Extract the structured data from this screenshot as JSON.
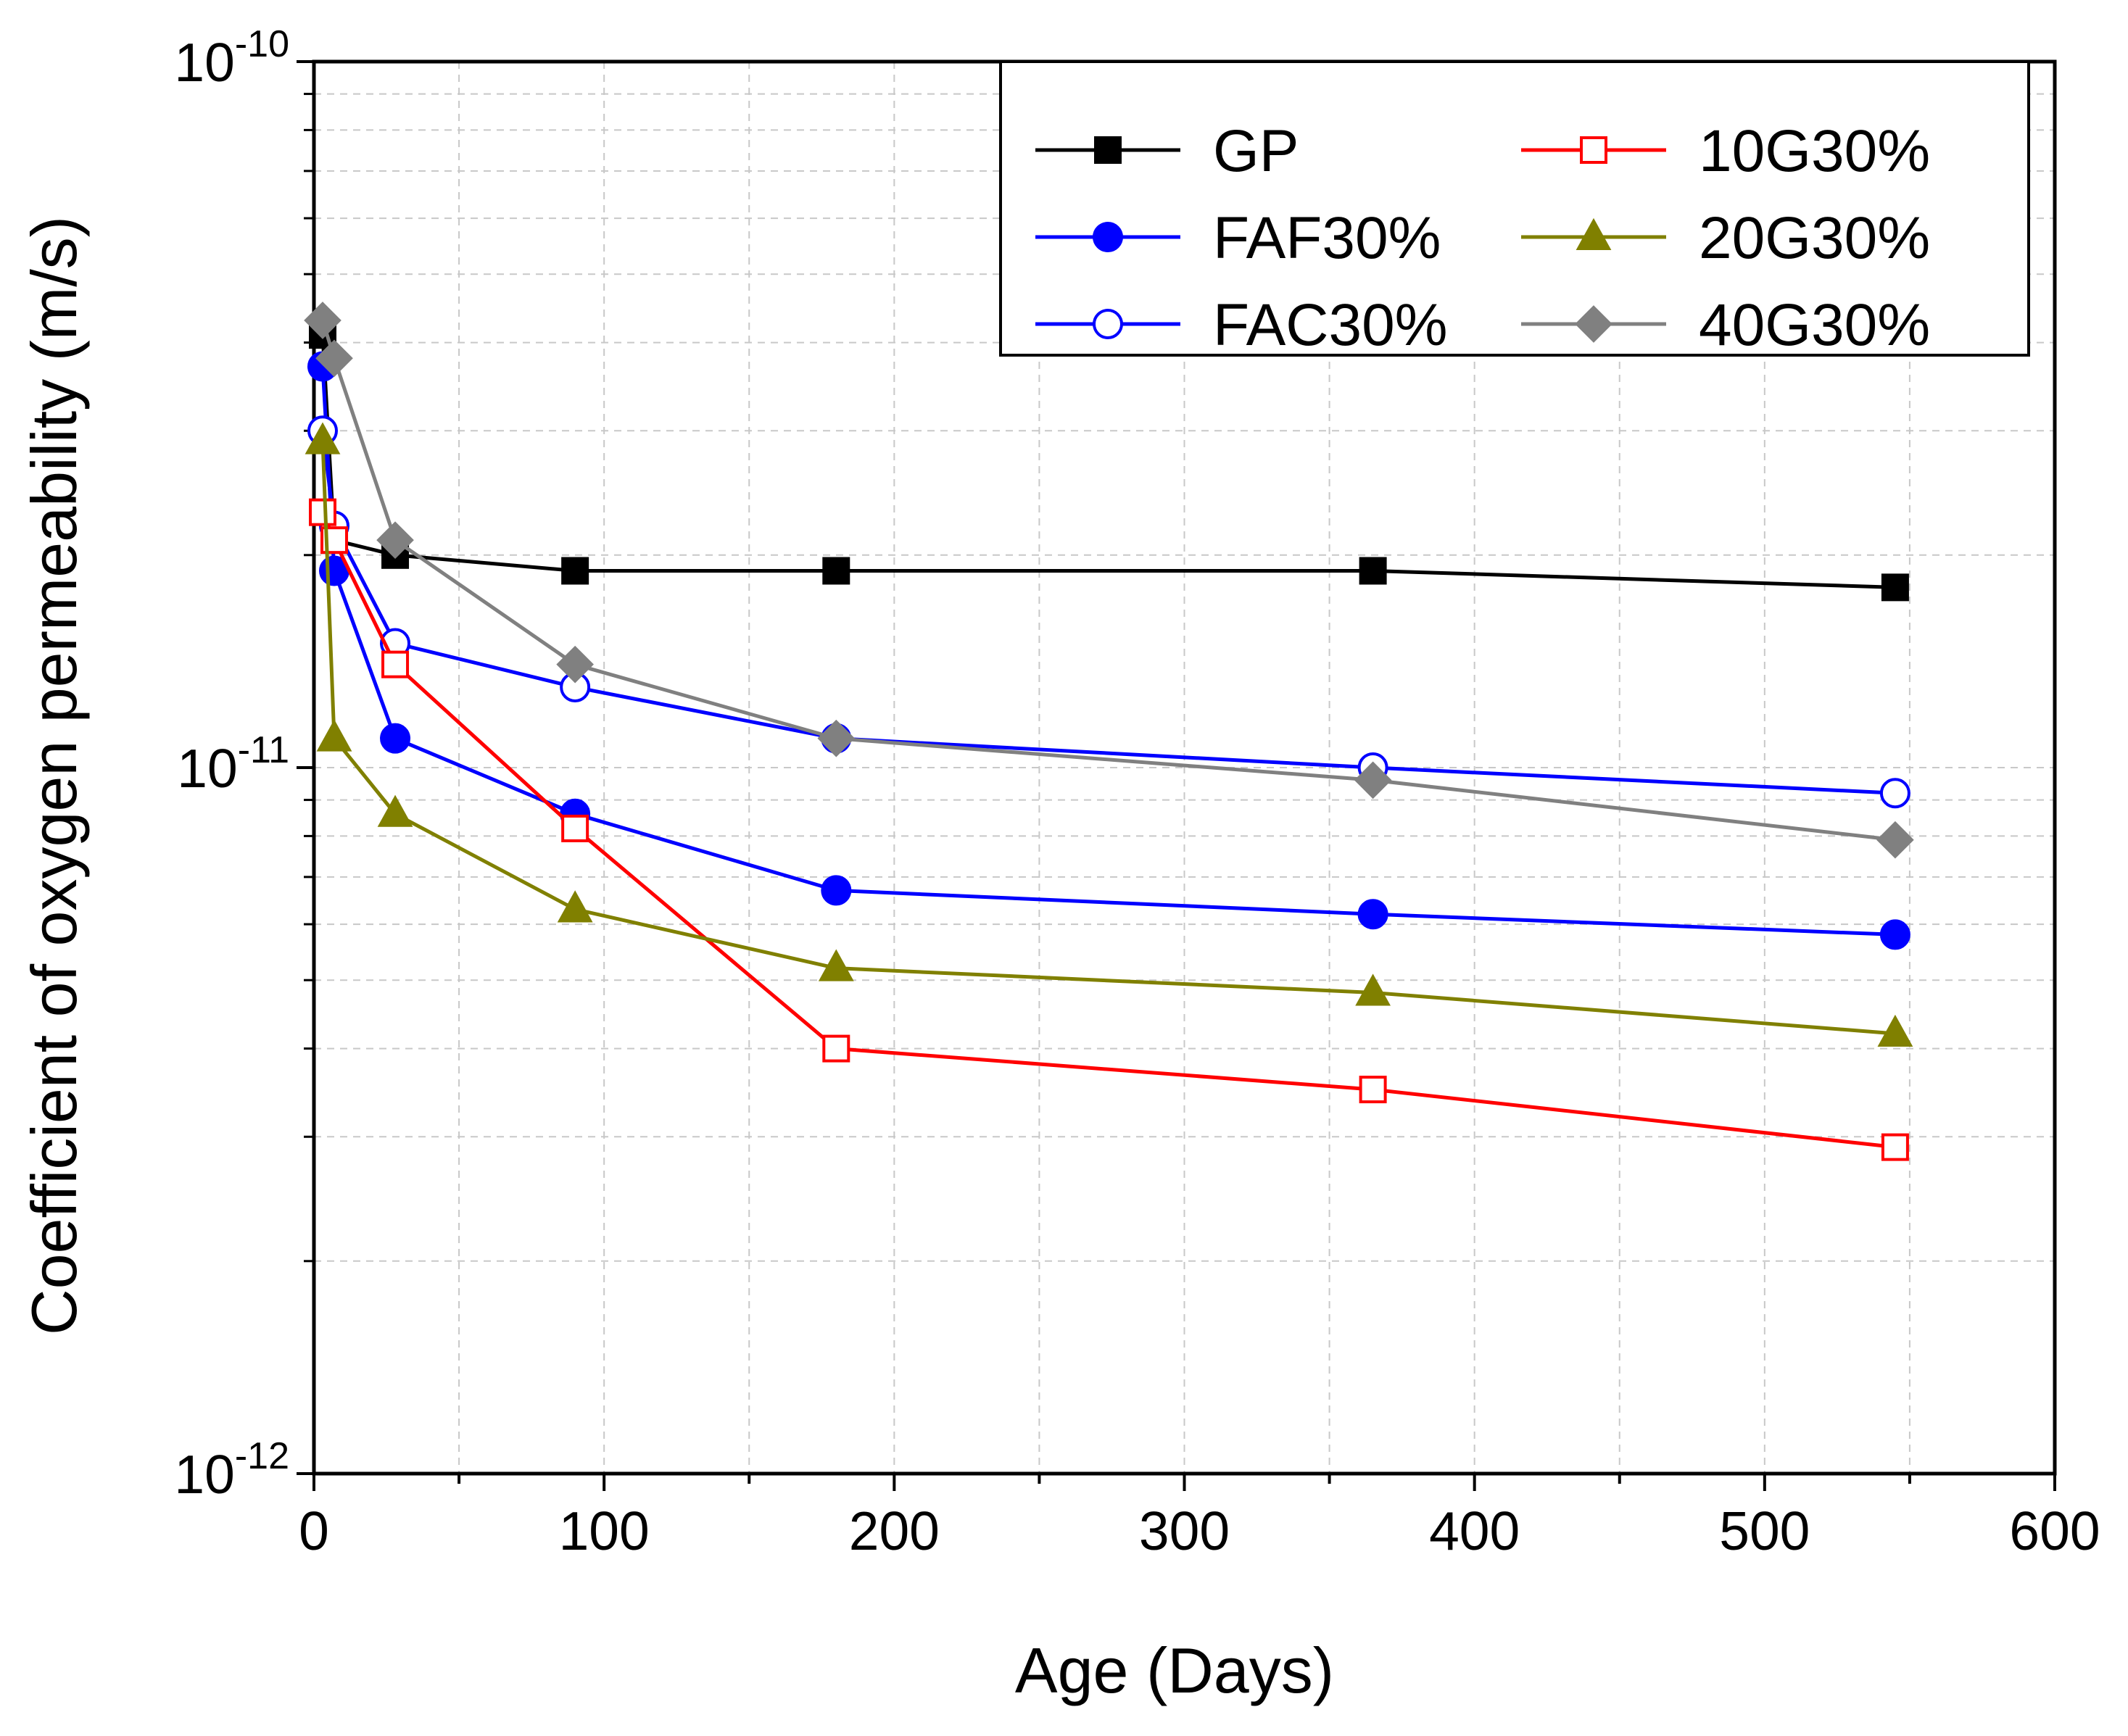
{
  "chart_data": {
    "type": "line",
    "title": "",
    "xlabel": "Age (Days)",
    "ylabel": "Coefficient of oxygen permeability (m/s)",
    "xlim": [
      0,
      600
    ],
    "ylim": [
      1e-12,
      1e-10
    ],
    "yscale": "log",
    "grid": true,
    "legend_position": "top-right",
    "x_ticks": [
      "0",
      "100",
      "200",
      "300",
      "400",
      "500",
      "600"
    ],
    "y_ticks": [
      {
        "base": "10",
        "exp": "-10"
      },
      {
        "base": "10",
        "exp": "-11"
      },
      {
        "base": "10",
        "exp": "-12"
      }
    ],
    "series": [
      {
        "name": "GP",
        "color": "#000000",
        "marker": "square",
        "filled": true,
        "x": [
          3,
          7,
          28,
          90,
          180,
          365,
          545
        ],
        "y": [
          4.1e-11,
          2.1e-11,
          2e-11,
          1.9e-11,
          1.9e-11,
          1.9e-11,
          1.8e-11
        ]
      },
      {
        "name": "FAF30%",
        "color": "#0000ff",
        "marker": "circle",
        "filled": true,
        "x": [
          3,
          7,
          28,
          90,
          180,
          365,
          545
        ],
        "y": [
          3.7e-11,
          1.9e-11,
          1.1e-11,
          8.6e-12,
          6.7e-12,
          6.2e-12,
          5.8e-12
        ]
      },
      {
        "name": "FAC30%",
        "color": "#0000ff",
        "marker": "circle",
        "filled": false,
        "x": [
          3,
          7,
          28,
          90,
          180,
          365,
          545
        ],
        "y": [
          3e-11,
          2.2e-11,
          1.5e-11,
          1.3e-11,
          1.1e-11,
          1e-11,
          9.2e-12
        ]
      },
      {
        "name": "10G30%",
        "color": "#ff0000",
        "marker": "square",
        "filled": false,
        "x": [
          3,
          7,
          28,
          90,
          180,
          365,
          545
        ],
        "y": [
          2.3e-11,
          2.1e-11,
          1.4e-11,
          8.2e-12,
          4e-12,
          3.5e-12,
          2.9e-12
        ]
      },
      {
        "name": "20G30%",
        "color": "#808000",
        "marker": "triangle",
        "filled": true,
        "x": [
          3,
          7,
          28,
          90,
          180,
          365,
          545
        ],
        "y": [
          2.9e-11,
          1.1e-11,
          8.6e-12,
          6.3e-12,
          5.2e-12,
          4.8e-12,
          4.2e-12
        ]
      },
      {
        "name": "40G30%",
        "color": "#808080",
        "marker": "diamond",
        "filled": true,
        "x": [
          3,
          7,
          28,
          90,
          180,
          365,
          545
        ],
        "y": [
          4.3e-11,
          3.8e-11,
          2.1e-11,
          1.4e-11,
          1.1e-11,
          9.6e-12,
          7.9e-12
        ]
      }
    ]
  }
}
